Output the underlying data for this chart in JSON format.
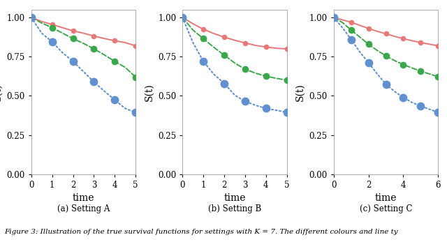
{
  "panels": [
    {
      "subtitle": "(a) Setting A",
      "xlabel": "time",
      "ylabel": "S(t)",
      "xlim": [
        0,
        5
      ],
      "ylim": [
        0,
        1.05
      ],
      "xticks": [
        0,
        1,
        2,
        3,
        4,
        5
      ],
      "yticks": [
        0.0,
        0.25,
        0.5,
        0.75,
        1.0
      ],
      "series": [
        {
          "x": [
            0,
            0.5,
            1,
            1.5,
            2,
            2.5,
            3,
            3.5,
            4,
            4.5,
            5
          ],
          "y": [
            1.0,
            0.975,
            0.955,
            0.935,
            0.915,
            0.9,
            0.882,
            0.866,
            0.852,
            0.84,
            0.82
          ],
          "color": "#E87878",
          "linestyle": "-",
          "marker_indices": [
            0,
            2,
            4,
            6,
            8,
            10
          ],
          "markersize": 5.5,
          "linewidth": 1.4
        },
        {
          "x": [
            0,
            0.5,
            1,
            1.5,
            2,
            2.5,
            3,
            3.5,
            4,
            4.5,
            5
          ],
          "y": [
            1.0,
            0.965,
            0.935,
            0.9,
            0.865,
            0.835,
            0.8,
            0.762,
            0.72,
            0.682,
            0.62
          ],
          "color": "#3AA84A",
          "linestyle": "--",
          "marker_indices": [
            0,
            2,
            4,
            6,
            8,
            10
          ],
          "markersize": 7,
          "linewidth": 1.4
        },
        {
          "x": [
            0,
            0.5,
            1,
            1.5,
            2,
            2.5,
            3,
            3.5,
            4,
            4.5,
            5
          ],
          "y": [
            1.0,
            0.9,
            0.845,
            0.775,
            0.72,
            0.655,
            0.59,
            0.53,
            0.475,
            0.42,
            0.395
          ],
          "color": "#6090D0",
          "linestyle": ":",
          "marker_indices": [
            0,
            2,
            4,
            6,
            8,
            10
          ],
          "markersize": 8.5,
          "linewidth": 1.5
        }
      ]
    },
    {
      "subtitle": "(b) Setting B",
      "xlabel": "time",
      "ylabel": "S(t)",
      "xlim": [
        0,
        5
      ],
      "ylim": [
        0,
        1.05
      ],
      "xticks": [
        0,
        1,
        2,
        3,
        4,
        5
      ],
      "yticks": [
        0.0,
        0.25,
        0.5,
        0.75,
        1.0
      ],
      "series": [
        {
          "x": [
            0,
            0.5,
            1,
            1.5,
            2,
            2.5,
            3,
            3.5,
            4,
            4.5,
            5
          ],
          "y": [
            1.0,
            0.96,
            0.925,
            0.898,
            0.875,
            0.855,
            0.838,
            0.822,
            0.812,
            0.804,
            0.8
          ],
          "color": "#E87878",
          "linestyle": "-",
          "marker_indices": [
            0,
            2,
            4,
            6,
            8,
            10
          ],
          "markersize": 5.5,
          "linewidth": 1.4
        },
        {
          "x": [
            0,
            0.5,
            1,
            1.5,
            2,
            2.5,
            3,
            3.5,
            4,
            4.5,
            5
          ],
          "y": [
            1.0,
            0.92,
            0.865,
            0.81,
            0.76,
            0.71,
            0.67,
            0.645,
            0.625,
            0.612,
            0.6
          ],
          "color": "#3AA84A",
          "linestyle": "--",
          "marker_indices": [
            0,
            2,
            4,
            6,
            8,
            10
          ],
          "markersize": 7,
          "linewidth": 1.4
        },
        {
          "x": [
            0,
            0.5,
            1,
            1.5,
            2,
            2.5,
            3,
            3.5,
            4,
            4.5,
            5
          ],
          "y": [
            1.0,
            0.84,
            0.72,
            0.638,
            0.58,
            0.505,
            0.465,
            0.44,
            0.42,
            0.408,
            0.395
          ],
          "color": "#6090D0",
          "linestyle": ":",
          "marker_indices": [
            0,
            2,
            4,
            6,
            8,
            10
          ],
          "markersize": 8.5,
          "linewidth": 1.5
        }
      ]
    },
    {
      "subtitle": "(c) Setting C",
      "xlabel": "time",
      "ylabel": "S(t)",
      "xlim": [
        0,
        6
      ],
      "ylim": [
        0,
        1.05
      ],
      "xticks": [
        0,
        2,
        4,
        6
      ],
      "yticks": [
        0.0,
        0.25,
        0.5,
        0.75,
        1.0
      ],
      "series": [
        {
          "x": [
            0,
            0.5,
            1,
            1.5,
            2,
            2.5,
            3,
            3.5,
            4,
            4.5,
            5,
            5.5,
            6
          ],
          "y": [
            1.0,
            0.985,
            0.97,
            0.95,
            0.93,
            0.912,
            0.896,
            0.88,
            0.865,
            0.852,
            0.84,
            0.83,
            0.82
          ],
          "color": "#E87878",
          "linestyle": "-",
          "marker_indices": [
            0,
            2,
            4,
            6,
            8,
            10,
            12
          ],
          "markersize": 5.5,
          "linewidth": 1.4
        },
        {
          "x": [
            0,
            0.5,
            1,
            1.5,
            2,
            2.5,
            3,
            3.5,
            4,
            4.5,
            5,
            5.5,
            6
          ],
          "y": [
            1.0,
            0.968,
            0.92,
            0.875,
            0.83,
            0.79,
            0.755,
            0.725,
            0.7,
            0.678,
            0.658,
            0.64,
            0.622
          ],
          "color": "#3AA84A",
          "linestyle": "--",
          "marker_indices": [
            0,
            2,
            4,
            6,
            8,
            10,
            12
          ],
          "markersize": 7,
          "linewidth": 1.4
        },
        {
          "x": [
            0,
            0.5,
            1,
            1.5,
            2,
            2.5,
            3,
            3.5,
            4,
            4.5,
            5,
            5.5,
            6
          ],
          "y": [
            1.0,
            0.935,
            0.86,
            0.78,
            0.712,
            0.64,
            0.575,
            0.528,
            0.49,
            0.458,
            0.435,
            0.415,
            0.395
          ],
          "color": "#6090D0",
          "linestyle": ":",
          "marker_indices": [
            0,
            2,
            4,
            6,
            8,
            10,
            12
          ],
          "markersize": 8.5,
          "linewidth": 1.5
        }
      ]
    }
  ],
  "background_color": "#FFFFFF",
  "panel_bg": "#FFFFFF",
  "caption": "Figure 3: Illustration of the true survival functions for settings with K = 7. The different colours and line ty",
  "caption_fontsize": 7.5
}
